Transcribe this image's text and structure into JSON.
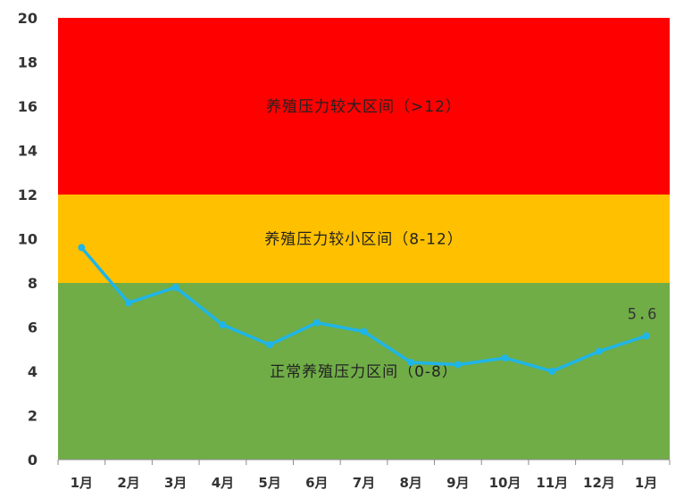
{
  "chart_data": {
    "type": "line",
    "title": "",
    "xlabel": "",
    "ylabel": "",
    "categories": [
      "1月",
      "2月",
      "3月",
      "4月",
      "5月",
      "6月",
      "7月",
      "8月",
      "9月",
      "10月",
      "11月",
      "12月",
      "1月"
    ],
    "values": [
      9.6,
      7.1,
      7.8,
      6.1,
      5.2,
      6.2,
      5.8,
      4.4,
      4.3,
      4.6,
      4.0,
      4.9,
      5.6
    ],
    "ylim": [
      0,
      20
    ],
    "yticks": [
      0,
      2,
      4,
      6,
      8,
      10,
      12,
      14,
      16,
      18,
      20
    ],
    "grid": false,
    "bands": [
      {
        "from": 0,
        "to": 8,
        "label": "正常养殖压力区间（0-8）",
        "color": "#70ad47"
      },
      {
        "from": 8,
        "to": 12,
        "label": "养殖压力较小区间（8-12）",
        "color": "#ffc000"
      },
      {
        "from": 12,
        "to": 20,
        "label": "养殖压力较大区间（>12）",
        "color": "#ff0000"
      }
    ],
    "annotations": [
      {
        "index": 12,
        "text": "5.6"
      }
    ],
    "line_color": "#1fb5e8"
  }
}
